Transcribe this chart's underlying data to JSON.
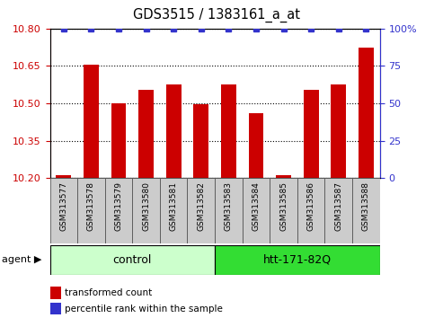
{
  "title": "GDS3515 / 1383161_a_at",
  "samples": [
    "GSM313577",
    "GSM313578",
    "GSM313579",
    "GSM313580",
    "GSM313581",
    "GSM313582",
    "GSM313583",
    "GSM313584",
    "GSM313585",
    "GSM313586",
    "GSM313587",
    "GSM313588"
  ],
  "bar_values": [
    10.21,
    10.655,
    10.5,
    10.555,
    10.575,
    10.495,
    10.575,
    10.46,
    10.21,
    10.555,
    10.575,
    10.725
  ],
  "percentile_values": [
    100,
    100,
    100,
    100,
    100,
    100,
    100,
    100,
    100,
    100,
    100,
    100
  ],
  "bar_color": "#cc0000",
  "dot_color": "#3333cc",
  "ylim": [
    10.2,
    10.8
  ],
  "y2lim": [
    0,
    100
  ],
  "yticks": [
    10.2,
    10.35,
    10.5,
    10.65,
    10.8
  ],
  "y2ticks": [
    0,
    25,
    50,
    75,
    100
  ],
  "groups": [
    {
      "label": "control",
      "start": 0,
      "end": 5,
      "color": "#ccffcc"
    },
    {
      "label": "htt-171-82Q",
      "start": 6,
      "end": 11,
      "color": "#33dd33"
    }
  ],
  "agent_label": "agent",
  "legend_items": [
    {
      "color": "#cc0000",
      "label": "transformed count"
    },
    {
      "color": "#3333cc",
      "label": "percentile rank within the sample"
    }
  ],
  "bar_width": 0.55,
  "sample_box_color": "#cccccc",
  "sample_box_edge": "#555555"
}
